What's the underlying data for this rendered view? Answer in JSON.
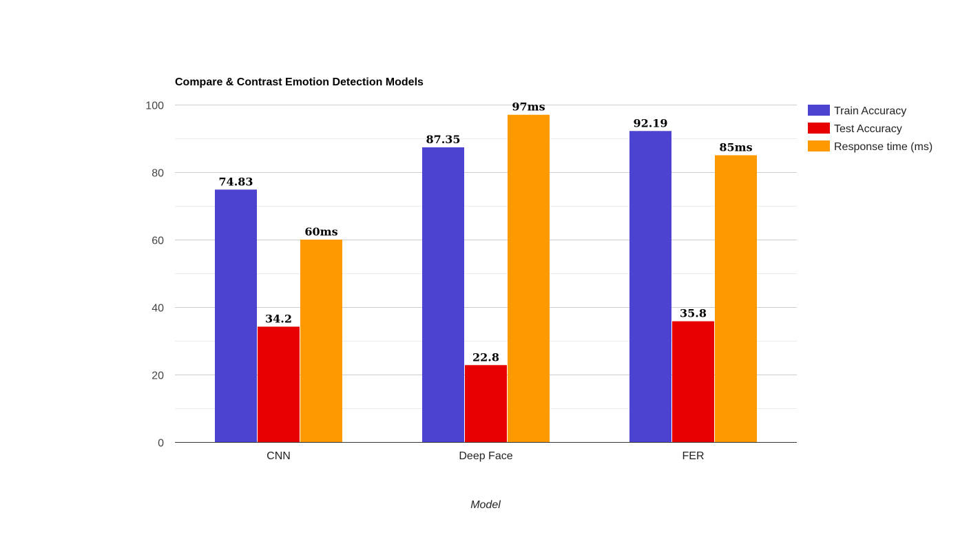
{
  "chart_data": {
    "type": "bar",
    "title": "Compare & Contrast Emotion Detection Models",
    "xlabel": "Model",
    "ylabel": "",
    "ylim": [
      0,
      100
    ],
    "yticks": [
      "0",
      "20",
      "40",
      "60",
      "80",
      "100"
    ],
    "categories": [
      "CNN",
      "Deep Face",
      "FER"
    ],
    "legend_position": "right",
    "grid": true,
    "series": [
      {
        "name": "Train Accuracy",
        "color": "#4c44d0",
        "values": [
          74.83,
          87.35,
          92.19
        ],
        "labels": [
          "74.83",
          "87.35",
          "92.19"
        ]
      },
      {
        "name": "Test Accuracy",
        "color": "#e60000",
        "values": [
          34.2,
          22.8,
          35.8
        ],
        "labels": [
          "34.2",
          "22.8",
          "35.8"
        ]
      },
      {
        "name": "Response time (ms)",
        "color": "#ff9900",
        "values": [
          60,
          97,
          85
        ],
        "labels": [
          "60ms",
          "97ms",
          "85ms"
        ]
      }
    ]
  }
}
